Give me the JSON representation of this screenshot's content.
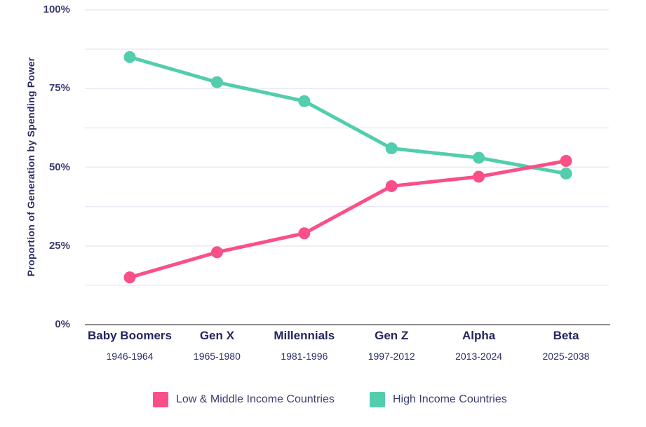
{
  "chart_data": {
    "type": "line",
    "title": "",
    "xlabel": "",
    "ylabel": "Proportion of Generation by Spending Power",
    "ylim": [
      0,
      100
    ],
    "grid": "horizontal",
    "gridline_values": [
      12.5,
      25,
      37.5,
      50,
      62.5,
      75,
      87.5,
      100
    ],
    "yticks": [
      {
        "label": "100%",
        "value": 100
      },
      {
        "label": "75%",
        "value": 75
      },
      {
        "label": "50%",
        "value": 50
      },
      {
        "label": "25%",
        "value": 25
      },
      {
        "label": "0%",
        "value": 0
      }
    ],
    "categories": [
      {
        "name": "Baby Boomers",
        "years": "1946-1964"
      },
      {
        "name": "Gen X",
        "years": "1965-1980"
      },
      {
        "name": "Millennials",
        "years": "1981-1996"
      },
      {
        "name": "Gen Z",
        "years": "1997-2012"
      },
      {
        "name": "Alpha",
        "years": "2013-2024"
      },
      {
        "name": "Beta",
        "years": "2025-2038"
      }
    ],
    "series": [
      {
        "name": "Low & Middle Income Countries",
        "slug": "low-middle-income",
        "color": "#FA4F87",
        "values": [
          15,
          23,
          29,
          44,
          47,
          52
        ]
      },
      {
        "name": "High Income Countries",
        "slug": "high-income",
        "color": "#52CDAD",
        "values": [
          85,
          77,
          71,
          56,
          53,
          48
        ]
      }
    ],
    "legend_position": "bottom"
  },
  "colors": {
    "background": "#FFFFFF",
    "text_navy": "#272A62",
    "gridline": "#E9E9F6",
    "axis_line": "#8C8C8C"
  }
}
